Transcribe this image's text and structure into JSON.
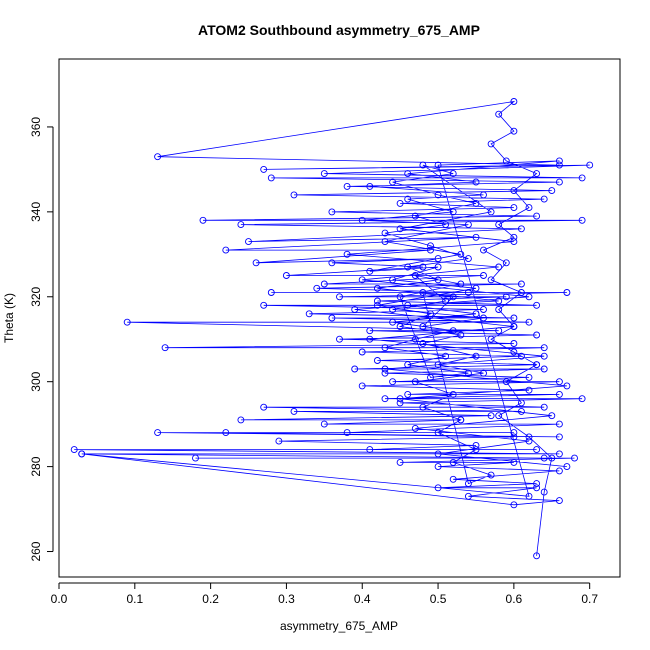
{
  "chart_data": {
    "type": "scatter",
    "title": "ATOM2 Southbound asymmetry_675_AMP",
    "xlabel": "asymmetry_675_AMP",
    "ylabel": "Theta (K)",
    "xlim": [
      0.0,
      0.74
    ],
    "ylim": [
      254,
      376
    ],
    "xticks": [
      0.0,
      0.1,
      0.2,
      0.3,
      0.4,
      0.5,
      0.6,
      0.7
    ],
    "xtick_labels": [
      "0.0",
      "0.1",
      "0.2",
      "0.3",
      "0.4",
      "0.5",
      "0.6",
      "0.7"
    ],
    "yticks": [
      260,
      280,
      300,
      320,
      340,
      360
    ],
    "ytick_labels": [
      "260",
      "280",
      "300",
      "320",
      "340",
      "360"
    ],
    "grid": false,
    "legend": "none",
    "series": [
      {
        "color": "#0000ff",
        "style": "lines+open-circles",
        "points": [
          [
            0.63,
            259
          ],
          [
            0.64,
            274
          ],
          [
            0.65,
            282
          ],
          [
            0.62,
            287
          ],
          [
            0.58,
            292
          ],
          [
            0.61,
            295
          ],
          [
            0.59,
            300
          ],
          [
            0.63,
            304
          ],
          [
            0.6,
            307
          ],
          [
            0.57,
            310
          ],
          [
            0.6,
            313
          ],
          [
            0.58,
            317
          ],
          [
            0.61,
            321
          ],
          [
            0.57,
            324
          ],
          [
            0.59,
            328
          ],
          [
            0.56,
            331
          ],
          [
            0.6,
            334
          ],
          [
            0.58,
            337
          ],
          [
            0.62,
            341
          ],
          [
            0.6,
            345
          ],
          [
            0.63,
            349
          ],
          [
            0.59,
            352
          ],
          [
            0.57,
            356
          ],
          [
            0.6,
            359
          ],
          [
            0.58,
            363
          ],
          [
            0.6,
            366
          ],
          [
            0.13,
            353
          ],
          [
            0.66,
            351
          ],
          [
            0.27,
            350
          ],
          [
            0.7,
            351
          ],
          [
            0.35,
            349
          ],
          [
            0.69,
            348
          ],
          [
            0.28,
            348
          ],
          [
            0.66,
            347
          ],
          [
            0.38,
            346
          ],
          [
            0.65,
            345
          ],
          [
            0.31,
            344
          ],
          [
            0.64,
            343
          ],
          [
            0.45,
            342
          ],
          [
            0.6,
            341
          ],
          [
            0.36,
            340
          ],
          [
            0.63,
            339
          ],
          [
            0.19,
            338
          ],
          [
            0.69,
            338
          ],
          [
            0.24,
            337
          ],
          [
            0.61,
            336
          ],
          [
            0.25,
            333
          ],
          [
            0.55,
            334
          ],
          [
            0.22,
            331
          ],
          [
            0.49,
            331
          ],
          [
            0.26,
            328
          ],
          [
            0.5,
            329
          ],
          [
            0.36,
            328
          ],
          [
            0.48,
            327
          ],
          [
            0.3,
            325
          ],
          [
            0.56,
            325
          ],
          [
            0.35,
            323
          ],
          [
            0.61,
            323
          ],
          [
            0.34,
            322
          ],
          [
            0.54,
            321
          ],
          [
            0.28,
            321
          ],
          [
            0.67,
            321
          ],
          [
            0.37,
            320
          ],
          [
            0.59,
            320
          ],
          [
            0.42,
            319
          ],
          [
            0.63,
            318
          ],
          [
            0.27,
            318
          ],
          [
            0.56,
            317
          ],
          [
            0.33,
            316
          ],
          [
            0.6,
            315
          ],
          [
            0.36,
            315
          ],
          [
            0.62,
            314
          ],
          [
            0.09,
            314
          ],
          [
            0.58,
            312
          ],
          [
            0.41,
            312
          ],
          [
            0.63,
            311
          ],
          [
            0.37,
            310
          ],
          [
            0.6,
            309
          ],
          [
            0.14,
            308
          ],
          [
            0.64,
            308
          ],
          [
            0.4,
            307
          ],
          [
            0.61,
            306
          ],
          [
            0.42,
            305
          ],
          [
            0.63,
            304
          ],
          [
            0.39,
            303
          ],
          [
            0.64,
            303
          ],
          [
            0.43,
            302
          ],
          [
            0.62,
            301
          ],
          [
            0.44,
            300
          ],
          [
            0.66,
            300
          ],
          [
            0.4,
            299
          ],
          [
            0.62,
            298
          ],
          [
            0.46,
            297
          ],
          [
            0.66,
            297
          ],
          [
            0.43,
            296
          ],
          [
            0.69,
            296
          ],
          [
            0.45,
            295
          ],
          [
            0.64,
            294
          ],
          [
            0.27,
            294
          ],
          [
            0.61,
            293
          ],
          [
            0.31,
            293
          ],
          [
            0.57,
            292
          ],
          [
            0.24,
            291
          ],
          [
            0.53,
            291
          ],
          [
            0.35,
            290
          ],
          [
            0.66,
            290
          ],
          [
            0.38,
            288
          ],
          [
            0.6,
            288
          ],
          [
            0.13,
            288
          ],
          [
            0.66,
            287
          ],
          [
            0.22,
            288
          ],
          [
            0.6,
            287
          ],
          [
            0.29,
            286
          ],
          [
            0.55,
            285
          ],
          [
            0.41,
            284
          ],
          [
            0.63,
            284
          ],
          [
            0.02,
            284
          ],
          [
            0.66,
            283
          ],
          [
            0.03,
            283
          ],
          [
            0.64,
            282
          ],
          [
            0.18,
            282
          ],
          [
            0.68,
            282
          ],
          [
            0.45,
            281
          ],
          [
            0.6,
            281
          ],
          [
            0.5,
            280
          ],
          [
            0.66,
            279
          ],
          [
            0.52,
            277
          ],
          [
            0.63,
            276
          ],
          [
            0.5,
            275
          ],
          [
            0.63,
            275
          ],
          [
            0.54,
            273
          ],
          [
            0.66,
            272
          ],
          [
            0.6,
            271
          ],
          [
            0.03,
            283
          ],
          [
            0.62,
            273
          ],
          [
            0.5,
            351
          ],
          [
            0.66,
            352
          ],
          [
            0.46,
            349
          ],
          [
            0.55,
            347
          ],
          [
            0.41,
            346
          ],
          [
            0.56,
            344
          ],
          [
            0.46,
            343
          ],
          [
            0.52,
            340
          ],
          [
            0.4,
            338
          ],
          [
            0.54,
            337
          ],
          [
            0.43,
            333
          ],
          [
            0.53,
            330
          ],
          [
            0.41,
            326
          ],
          [
            0.5,
            327
          ],
          [
            0.44,
            324
          ],
          [
            0.55,
            322
          ],
          [
            0.42,
            318
          ],
          [
            0.49,
            316
          ],
          [
            0.45,
            313
          ],
          [
            0.53,
            311
          ],
          [
            0.48,
            309
          ],
          [
            0.55,
            306
          ],
          [
            0.5,
            304
          ],
          [
            0.56,
            302
          ],
          [
            0.47,
            300
          ],
          [
            0.52,
            297
          ],
          [
            0.48,
            294
          ],
          [
            0.53,
            291
          ],
          [
            0.5,
            288
          ],
          [
            0.55,
            284
          ],
          [
            0.52,
            281
          ],
          [
            0.57,
            278
          ],
          [
            0.54,
            276
          ],
          [
            0.48,
            321
          ],
          [
            0.58,
            319
          ],
          [
            0.46,
            318
          ],
          [
            0.55,
            316
          ],
          [
            0.44,
            314
          ],
          [
            0.52,
            312
          ],
          [
            0.47,
            310
          ],
          [
            0.43,
            308
          ],
          [
            0.51,
            306
          ],
          [
            0.46,
            304
          ],
          [
            0.54,
            302
          ],
          [
            0.49,
            301
          ],
          [
            0.45,
            320
          ],
          [
            0.53,
            323
          ],
          [
            0.47,
            325
          ],
          [
            0.51,
            319
          ],
          [
            0.44,
            317
          ],
          [
            0.56,
            315
          ],
          [
            0.48,
            313
          ],
          [
            0.52,
            320
          ],
          [
            0.42,
            322
          ],
          [
            0.5,
            324
          ],
          [
            0.46,
            327
          ],
          [
            0.54,
            329
          ],
          [
            0.49,
            332
          ],
          [
            0.43,
            335
          ],
          [
            0.51,
            337
          ],
          [
            0.47,
            339
          ],
          [
            0.55,
            342
          ],
          [
            0.5,
            344
          ],
          [
            0.44,
            347
          ],
          [
            0.52,
            349
          ],
          [
            0.48,
            351
          ],
          [
            0.57,
            340
          ],
          [
            0.45,
            336
          ],
          [
            0.6,
            333
          ],
          [
            0.38,
            330
          ],
          [
            0.58,
            327
          ],
          [
            0.4,
            324
          ],
          [
            0.62,
            320
          ],
          [
            0.39,
            317
          ],
          [
            0.6,
            313
          ],
          [
            0.41,
            310
          ],
          [
            0.64,
            306
          ],
          [
            0.43,
            303
          ],
          [
            0.67,
            299
          ],
          [
            0.45,
            296
          ],
          [
            0.65,
            292
          ],
          [
            0.47,
            289
          ],
          [
            0.62,
            286
          ],
          [
            0.5,
            283
          ],
          [
            0.67,
            280
          ]
        ]
      }
    ]
  }
}
